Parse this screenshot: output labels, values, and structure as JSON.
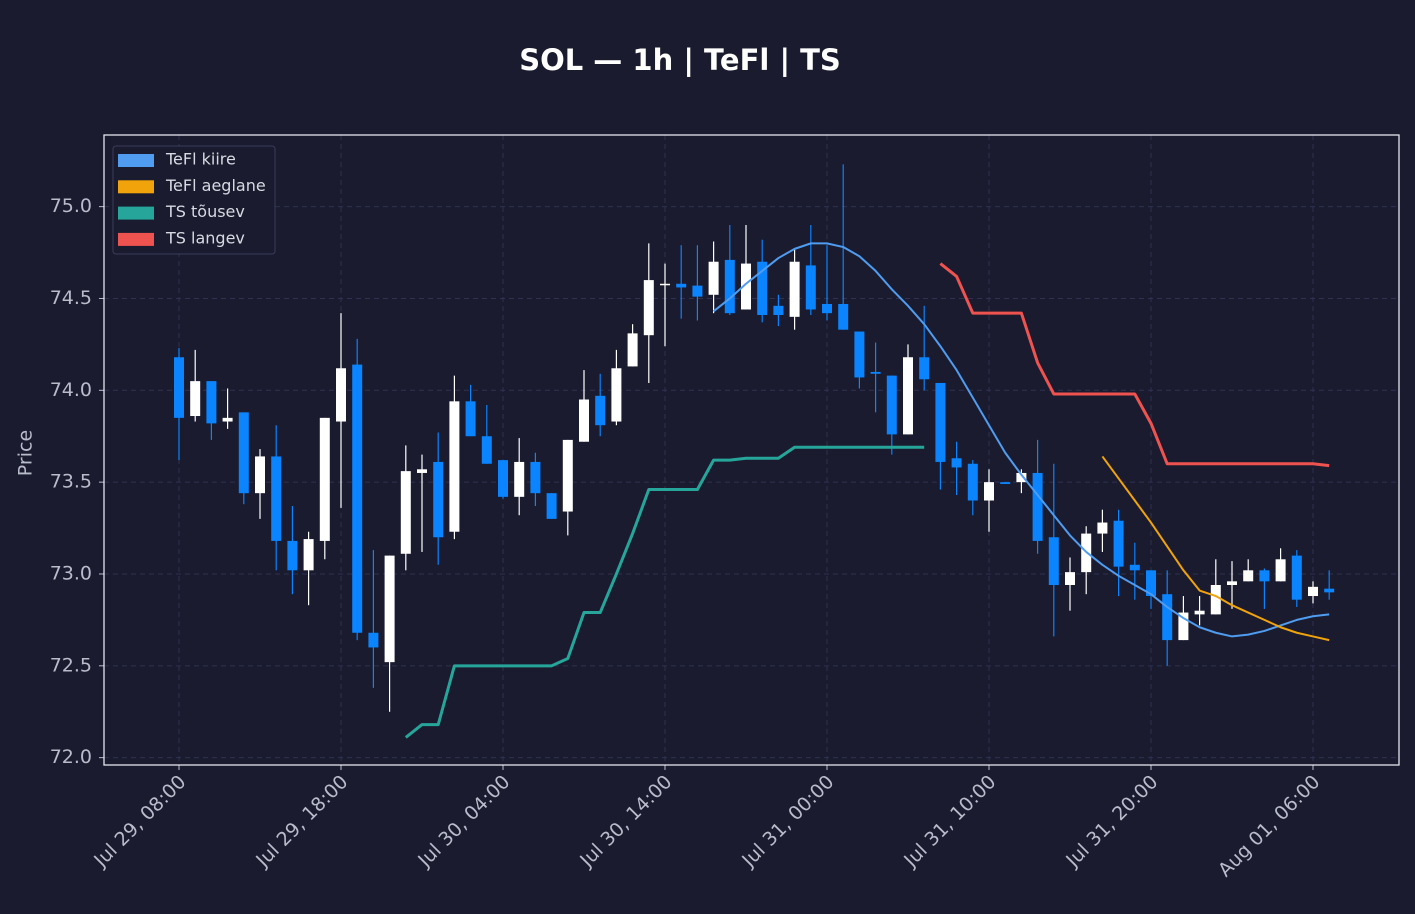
{
  "chart_data": {
    "type": "candlestick",
    "title": "SOL — 1h  |  TeFl  |  TS",
    "ylabel": "Price",
    "x": [
      "Jul 29, 08:00",
      "Jul 29, 09:00",
      "Jul 29, 10:00",
      "Jul 29, 11:00",
      "Jul 29, 12:00",
      "Jul 29, 13:00",
      "Jul 29, 14:00",
      "Jul 29, 15:00",
      "Jul 29, 16:00",
      "Jul 29, 17:00",
      "Jul 29, 18:00",
      "Jul 29, 19:00",
      "Jul 29, 20:00",
      "Jul 29, 21:00",
      "Jul 29, 22:00",
      "Jul 29, 23:00",
      "Jul 30, 00:00",
      "Jul 30, 01:00",
      "Jul 30, 02:00",
      "Jul 30, 03:00",
      "Jul 30, 04:00",
      "Jul 30, 05:00",
      "Jul 30, 06:00",
      "Jul 30, 07:00",
      "Jul 30, 08:00",
      "Jul 30, 09:00",
      "Jul 30, 10:00",
      "Jul 30, 11:00",
      "Jul 30, 12:00",
      "Jul 30, 13:00",
      "Jul 30, 14:00",
      "Jul 30, 15:00",
      "Jul 30, 16:00",
      "Jul 30, 17:00",
      "Jul 30, 18:00",
      "Jul 30, 19:00",
      "Jul 30, 20:00",
      "Jul 30, 21:00",
      "Jul 30, 22:00",
      "Jul 30, 23:00",
      "Jul 31, 00:00",
      "Jul 31, 01:00",
      "Jul 31, 02:00",
      "Jul 31, 03:00",
      "Jul 31, 04:00",
      "Jul 31, 05:00",
      "Jul 31, 06:00",
      "Jul 31, 07:00",
      "Jul 31, 08:00",
      "Jul 31, 09:00",
      "Jul 31, 10:00",
      "Jul 31, 11:00",
      "Jul 31, 12:00",
      "Jul 31, 13:00",
      "Jul 31, 14:00",
      "Jul 31, 15:00",
      "Jul 31, 16:00",
      "Jul 31, 17:00",
      "Jul 31, 18:00",
      "Jul 31, 19:00",
      "Jul 31, 20:00",
      "Jul 31, 21:00",
      "Jul 31, 22:00",
      "Jul 31, 23:00",
      "Aug 01, 00:00",
      "Aug 01, 01:00",
      "Aug 01, 02:00",
      "Aug 01, 03:00",
      "Aug 01, 04:00",
      "Aug 01, 05:00",
      "Aug 01, 06:00",
      "Aug 01, 07:00"
    ],
    "open": [
      74.18,
      73.86,
      74.05,
      73.83,
      73.88,
      73.44,
      73.64,
      73.18,
      73.02,
      73.18,
      73.83,
      74.14,
      72.68,
      72.52,
      73.11,
      73.55,
      73.61,
      73.23,
      73.94,
      73.75,
      73.62,
      73.42,
      73.61,
      73.44,
      73.34,
      73.72,
      73.97,
      73.83,
      74.13,
      74.3,
      74.58,
      74.58,
      74.57,
      74.52,
      74.71,
      74.44,
      74.7,
      74.46,
      74.4,
      74.68,
      74.47,
      74.47,
      74.32,
      74.1,
      74.08,
      73.76,
      74.18,
      74.04,
      73.63,
      73.6,
      73.4,
      73.5,
      73.5,
      73.55,
      73.2,
      72.94,
      73.01,
      73.22,
      73.29,
      73.05,
      73.02,
      72.89,
      72.64,
      72.78,
      72.78,
      72.94,
      72.96,
      73.02,
      72.96,
      73.1,
      72.88,
      72.92
    ],
    "high": [
      74.23,
      74.22,
      74.05,
      74.01,
      73.88,
      73.68,
      73.81,
      73.37,
      73.23,
      73.85,
      74.42,
      74.28,
      73.13,
      73.1,
      73.7,
      73.65,
      73.77,
      74.08,
      74.03,
      73.92,
      73.62,
      73.74,
      73.66,
      73.44,
      73.73,
      74.11,
      74.09,
      74.22,
      74.36,
      74.8,
      74.69,
      74.79,
      74.79,
      74.81,
      74.9,
      74.9,
      74.82,
      74.52,
      74.77,
      74.9,
      74.79,
      75.23,
      74.32,
      74.26,
      74.08,
      74.25,
      74.46,
      74.04,
      73.72,
      73.62,
      73.57,
      73.5,
      73.57,
      73.73,
      73.6,
      73.09,
      73.26,
      73.35,
      73.35,
      73.17,
      73.02,
      73.02,
      72.88,
      72.88,
      73.08,
      73.07,
      73.08,
      73.03,
      73.14,
      73.13,
      72.96,
      73.02
    ],
    "low": [
      73.62,
      73.83,
      73.73,
      73.79,
      73.38,
      73.3,
      73.02,
      72.89,
      72.83,
      73.08,
      73.36,
      72.64,
      72.38,
      72.25,
      73.02,
      73.12,
      73.05,
      73.19,
      73.75,
      73.6,
      73.41,
      73.32,
      73.37,
      73.3,
      73.21,
      73.72,
      73.75,
      73.81,
      74.13,
      74.04,
      74.24,
      74.39,
      74.38,
      74.42,
      74.41,
      74.44,
      74.37,
      74.35,
      74.33,
      74.41,
      74.38,
      74.33,
      74.01,
      73.88,
      73.65,
      73.76,
      74.0,
      73.46,
      73.43,
      73.32,
      73.23,
      73.49,
      73.44,
      73.11,
      72.66,
      72.8,
      72.89,
      73.12,
      72.88,
      72.86,
      72.81,
      72.5,
      72.64,
      72.72,
      72.78,
      72.81,
      72.96,
      72.81,
      72.96,
      72.82,
      72.84,
      72.86
    ],
    "close": [
      73.85,
      74.05,
      73.82,
      73.85,
      73.44,
      73.64,
      73.18,
      73.02,
      73.19,
      73.85,
      74.12,
      72.68,
      72.6,
      73.1,
      73.56,
      73.57,
      73.2,
      73.94,
      73.75,
      73.6,
      73.42,
      73.61,
      73.44,
      73.3,
      73.73,
      73.95,
      73.81,
      74.12,
      74.31,
      74.6,
      74.58,
      74.56,
      74.51,
      74.7,
      74.42,
      74.69,
      74.41,
      74.41,
      74.7,
      74.44,
      74.42,
      74.33,
      74.07,
      74.09,
      73.76,
      74.18,
      74.06,
      73.61,
      73.58,
      73.4,
      73.5,
      73.49,
      73.55,
      73.18,
      72.94,
      73.01,
      73.22,
      73.28,
      73.04,
      73.02,
      72.88,
      72.64,
      72.79,
      72.8,
      72.94,
      72.96,
      73.02,
      72.96,
      73.08,
      72.86,
      72.93,
      72.9
    ],
    "up_color": "#ffffff",
    "down_color": "#0a84ff",
    "series": [
      {
        "name": "TeFl kiire",
        "color": "#4f9cf0",
        "width": 2,
        "values": [
          null,
          null,
          null,
          null,
          null,
          null,
          null,
          null,
          null,
          null,
          null,
          null,
          null,
          null,
          null,
          null,
          null,
          null,
          null,
          null,
          null,
          null,
          null,
          null,
          null,
          null,
          null,
          null,
          null,
          null,
          null,
          null,
          null,
          74.43,
          74.5,
          74.58,
          74.65,
          74.72,
          74.77,
          74.8,
          74.8,
          74.78,
          74.73,
          74.65,
          74.55,
          74.46,
          74.36,
          74.24,
          74.11,
          73.96,
          73.81,
          73.66,
          73.54,
          73.43,
          73.32,
          73.21,
          73.12,
          73.05,
          72.99,
          72.94,
          72.89,
          72.82,
          72.76,
          72.71,
          72.68,
          72.66,
          72.67,
          72.69,
          72.72,
          72.75,
          72.77,
          72.78
        ]
      },
      {
        "name": "TeFl aeglane",
        "color": "#f0a30a",
        "width": 2,
        "values": [
          null,
          null,
          null,
          null,
          null,
          null,
          null,
          null,
          null,
          null,
          null,
          null,
          null,
          null,
          null,
          null,
          null,
          null,
          null,
          null,
          null,
          null,
          null,
          null,
          null,
          null,
          null,
          null,
          null,
          null,
          null,
          null,
          null,
          null,
          null,
          null,
          null,
          null,
          null,
          null,
          null,
          null,
          null,
          null,
          null,
          null,
          null,
          null,
          null,
          null,
          null,
          null,
          null,
          null,
          null,
          null,
          null,
          73.64,
          73.52,
          73.4,
          73.28,
          73.15,
          73.02,
          72.91,
          72.88,
          72.83,
          72.79,
          72.75,
          72.71,
          72.68,
          72.66,
          72.64
        ]
      },
      {
        "name": "TS tõusev",
        "color": "#26a69a",
        "width": 3,
        "values": [
          null,
          null,
          null,
          null,
          null,
          null,
          null,
          null,
          null,
          null,
          null,
          null,
          null,
          null,
          72.11,
          72.18,
          72.18,
          72.5,
          72.5,
          72.5,
          72.5,
          72.5,
          72.5,
          72.5,
          72.54,
          72.79,
          72.79,
          73.0,
          73.22,
          73.46,
          73.46,
          73.46,
          73.46,
          73.62,
          73.62,
          73.63,
          73.63,
          73.63,
          73.69,
          73.69,
          73.69,
          73.69,
          73.69,
          73.69,
          73.69,
          73.69,
          73.69,
          null,
          null,
          null,
          null,
          null,
          null,
          null,
          null,
          null,
          null,
          null,
          null,
          null,
          null,
          null,
          null,
          null,
          null,
          null,
          null,
          null,
          null,
          null,
          null,
          null
        ]
      },
      {
        "name": "TS langev",
        "color": "#ef5350",
        "width": 3,
        "values": [
          null,
          null,
          null,
          null,
          null,
          null,
          null,
          null,
          null,
          null,
          null,
          null,
          null,
          null,
          null,
          null,
          null,
          null,
          null,
          null,
          null,
          null,
          null,
          null,
          null,
          null,
          null,
          null,
          null,
          null,
          null,
          null,
          null,
          null,
          null,
          null,
          null,
          null,
          null,
          null,
          null,
          null,
          null,
          null,
          null,
          null,
          null,
          74.69,
          74.62,
          74.42,
          74.42,
          74.42,
          74.42,
          74.15,
          73.98,
          73.98,
          73.98,
          73.98,
          73.98,
          73.98,
          73.82,
          73.6,
          73.6,
          73.6,
          73.6,
          73.6,
          73.6,
          73.6,
          73.6,
          73.6,
          73.6,
          73.59
        ]
      }
    ],
    "ylim": [
      71.96,
      75.39
    ],
    "yticks": [
      {
        "value": 72,
        "label": "72.0"
      },
      {
        "value": 72.5,
        "label": "72.5"
      },
      {
        "value": 73,
        "label": "73.0"
      },
      {
        "value": 73.5,
        "label": "73.5"
      },
      {
        "value": 74,
        "label": "74.0"
      },
      {
        "value": 74.5,
        "label": "74.5"
      },
      {
        "value": 75,
        "label": "75.0"
      }
    ],
    "xticks": [
      "Jul 29, 08:00",
      "Jul 29, 18:00",
      "Jul 30, 04:00",
      "Jul 30, 14:00",
      "Jul 31, 00:00",
      "Jul 31, 10:00",
      "Jul 31, 20:00",
      "Aug 01, 06:00"
    ],
    "grid": true,
    "legend": "upper left"
  }
}
